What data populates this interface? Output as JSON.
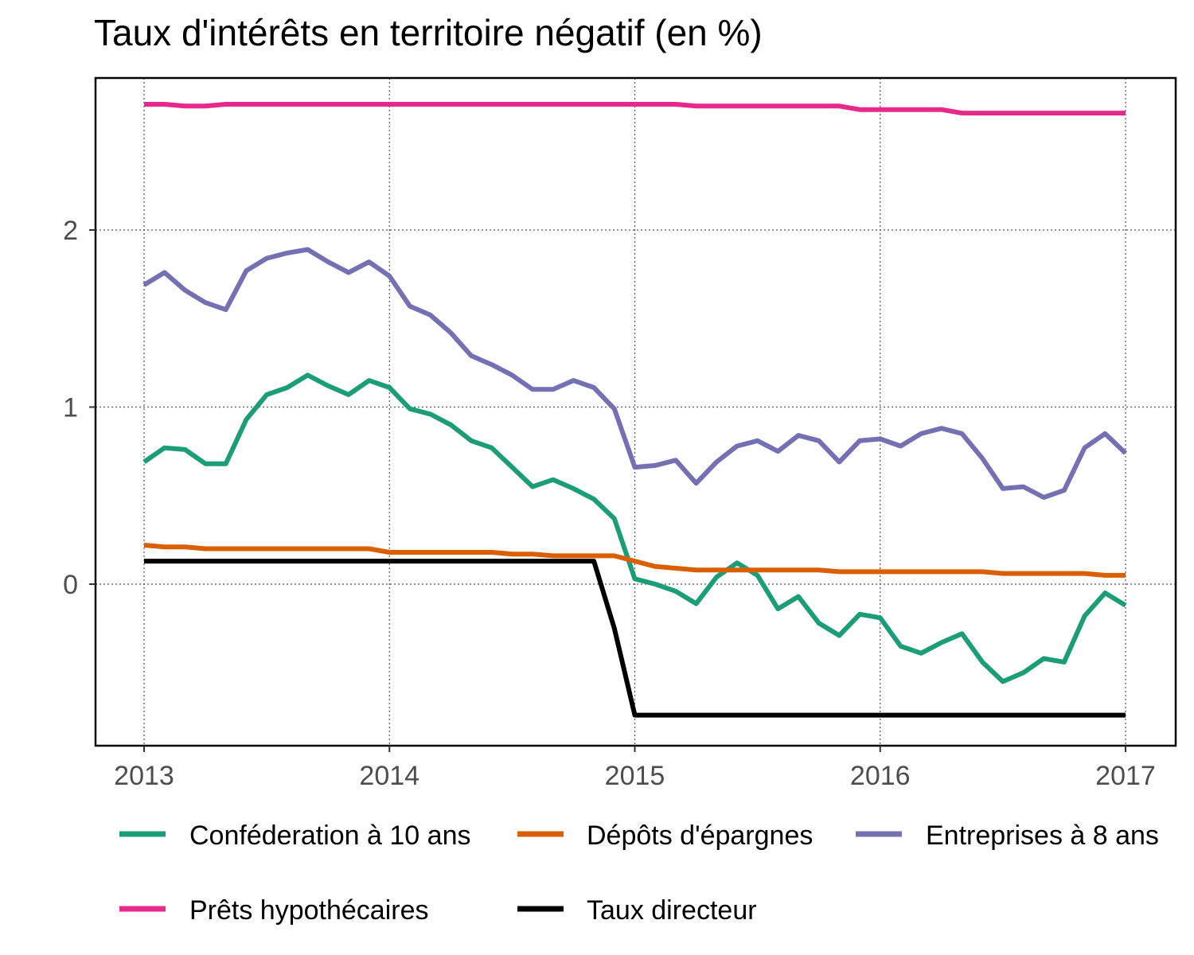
{
  "title": "Taux d'intérêts en territoire négatif (en %)",
  "chart_data": {
    "type": "line",
    "title": "Taux d'intérêts en territoire négatif (en %)",
    "xlabel": "",
    "ylabel": "",
    "xlim": [
      2013.0,
      2017.0
    ],
    "ylim": [
      -0.9,
      2.85
    ],
    "x_ticks": [
      2013,
      2014,
      2015,
      2016,
      2017
    ],
    "x_tick_labels": [
      "2013",
      "2014",
      "2015",
      "2016",
      "2017"
    ],
    "y_ticks": [
      0,
      1,
      2
    ],
    "y_tick_labels": [
      "0",
      "1",
      "2"
    ],
    "grid": true,
    "legend_position": "bottom",
    "series": [
      {
        "name": "Conféderation à 10 ans",
        "color": "#1b9e77",
        "values": [
          0.69,
          0.77,
          0.76,
          0.68,
          0.68,
          0.93,
          1.07,
          1.11,
          1.18,
          1.12,
          1.07,
          1.15,
          1.11,
          0.99,
          0.96,
          0.9,
          0.81,
          0.77,
          0.66,
          0.55,
          0.59,
          0.54,
          0.48,
          0.37,
          0.03,
          0.0,
          -0.04,
          -0.11,
          0.04,
          0.12,
          0.05,
          -0.14,
          -0.07,
          -0.22,
          -0.29,
          -0.17,
          -0.19,
          -0.35,
          -0.39,
          -0.33,
          -0.28,
          -0.44,
          -0.55,
          -0.5,
          -0.42,
          -0.44,
          -0.18,
          -0.05,
          -0.12
        ]
      },
      {
        "name": "Dépôts d'épargnes",
        "color": "#d95f02",
        "values": [
          0.22,
          0.21,
          0.21,
          0.2,
          0.2,
          0.2,
          0.2,
          0.2,
          0.2,
          0.2,
          0.2,
          0.2,
          0.18,
          0.18,
          0.18,
          0.18,
          0.18,
          0.18,
          0.17,
          0.17,
          0.16,
          0.16,
          0.16,
          0.16,
          0.13,
          0.1,
          0.09,
          0.08,
          0.08,
          0.08,
          0.08,
          0.08,
          0.08,
          0.08,
          0.07,
          0.07,
          0.07,
          0.07,
          0.07,
          0.07,
          0.07,
          0.07,
          0.06,
          0.06,
          0.06,
          0.06,
          0.06,
          0.05,
          0.05
        ]
      },
      {
        "name": "Entreprises à 8 ans",
        "color": "#7570b3",
        "values": [
          1.69,
          1.76,
          1.66,
          1.59,
          1.55,
          1.77,
          1.84,
          1.87,
          1.89,
          1.82,
          1.76,
          1.82,
          1.74,
          1.57,
          1.52,
          1.42,
          1.29,
          1.24,
          1.18,
          1.1,
          1.1,
          1.15,
          1.11,
          0.99,
          0.66,
          0.67,
          0.7,
          0.57,
          0.69,
          0.78,
          0.81,
          0.75,
          0.84,
          0.81,
          0.69,
          0.81,
          0.82,
          0.78,
          0.85,
          0.88,
          0.85,
          0.71,
          0.54,
          0.55,
          0.49,
          0.53,
          0.77,
          0.85,
          0.74
        ]
      },
      {
        "name": "Prêts hypothécaires",
        "color": "#e7298a",
        "values": [
          2.71,
          2.71,
          2.7,
          2.7,
          2.71,
          2.71,
          2.71,
          2.71,
          2.71,
          2.71,
          2.71,
          2.71,
          2.71,
          2.71,
          2.71,
          2.71,
          2.71,
          2.71,
          2.71,
          2.71,
          2.71,
          2.71,
          2.71,
          2.71,
          2.71,
          2.71,
          2.71,
          2.7,
          2.7,
          2.7,
          2.7,
          2.7,
          2.7,
          2.7,
          2.7,
          2.68,
          2.68,
          2.68,
          2.68,
          2.68,
          2.66,
          2.66,
          2.66,
          2.66,
          2.66,
          2.66,
          2.66,
          2.66,
          2.66
        ]
      },
      {
        "name": "Taux directeur",
        "color": "#000000",
        "values": [
          0.13,
          0.13,
          0.13,
          0.13,
          0.13,
          0.13,
          0.13,
          0.13,
          0.13,
          0.13,
          0.13,
          0.13,
          0.13,
          0.13,
          0.13,
          0.13,
          0.13,
          0.13,
          0.13,
          0.13,
          0.13,
          0.13,
          0.13,
          -0.25,
          -0.74,
          -0.74,
          -0.74,
          -0.74,
          -0.74,
          -0.74,
          -0.74,
          -0.74,
          -0.74,
          -0.74,
          -0.74,
          -0.74,
          -0.74,
          -0.74,
          -0.74,
          -0.74,
          -0.74,
          -0.74,
          -0.74,
          -0.74,
          -0.74,
          -0.74,
          -0.74,
          -0.74,
          -0.74
        ]
      }
    ]
  }
}
